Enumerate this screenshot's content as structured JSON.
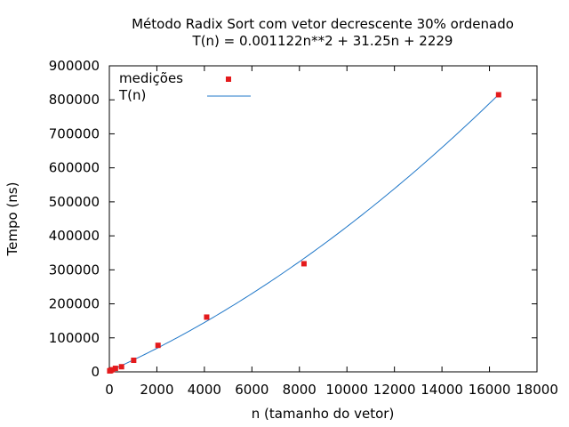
{
  "chart_data": {
    "type": "scatter",
    "title": "Método Radix Sort com vetor decrescente 30% ordenado",
    "subtitle": "T(n) = 0.001122n**2 + 31.25n + 2229",
    "xlabel": "n (tamanho do vetor)",
    "ylabel": "Tempo (ns)",
    "xlim": [
      0,
      18000
    ],
    "ylim": [
      0,
      900000
    ],
    "x_ticks": [
      0,
      2000,
      4000,
      6000,
      8000,
      10000,
      12000,
      14000,
      16000,
      18000
    ],
    "y_ticks": [
      0,
      100000,
      200000,
      300000,
      400000,
      500000,
      600000,
      700000,
      800000,
      900000
    ],
    "grid": false,
    "legend_position": "top-left",
    "series": [
      {
        "name": "medições",
        "kind": "points",
        "color": "#e41a1c",
        "points": [
          [
            16,
            2800
          ],
          [
            32,
            3300
          ],
          [
            64,
            4300
          ],
          [
            128,
            6200
          ],
          [
            256,
            10300
          ],
          [
            512,
            15000
          ],
          [
            1024,
            34000
          ],
          [
            2048,
            78000
          ],
          [
            4096,
            161000
          ],
          [
            8192,
            318000
          ],
          [
            16384,
            815000
          ]
        ]
      },
      {
        "name": "T(n)",
        "kind": "line",
        "color": "#1f77c8",
        "coefficients": {
          "a": 0.001122,
          "b": 31.25,
          "c": 2229
        },
        "x_range": [
          0,
          16384
        ]
      }
    ]
  }
}
